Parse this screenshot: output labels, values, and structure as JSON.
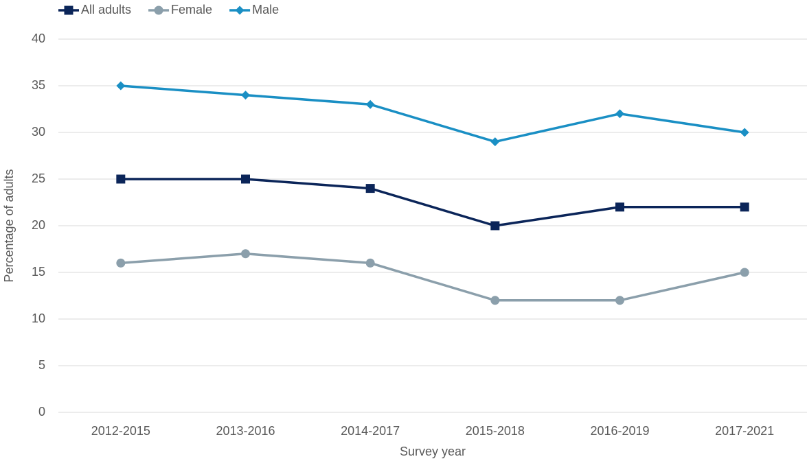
{
  "chart_data": {
    "type": "line",
    "x_label": "Survey year",
    "y_label": "Percentage of adults",
    "categories": [
      "2012-2015",
      "2013-2016",
      "2014-2017",
      "2015-2018",
      "2016-2019",
      "2017-2021"
    ],
    "series": [
      {
        "name": "All adults",
        "color": "#0b2559",
        "marker": "square",
        "values": [
          25,
          25,
          24,
          20,
          22,
          22
        ]
      },
      {
        "name": "Female",
        "color": "#8b9fab",
        "marker": "circle",
        "values": [
          16,
          17,
          16,
          12,
          12,
          15
        ]
      },
      {
        "name": "Male",
        "color": "#1a8fc4",
        "marker": "diamond",
        "values": [
          35,
          34,
          33,
          29,
          32,
          30
        ]
      }
    ],
    "ylim": [
      0,
      40
    ],
    "yticks": [
      0,
      5,
      10,
      15,
      20,
      25,
      30,
      35,
      40
    ],
    "grid": true,
    "legend": "top-left"
  }
}
